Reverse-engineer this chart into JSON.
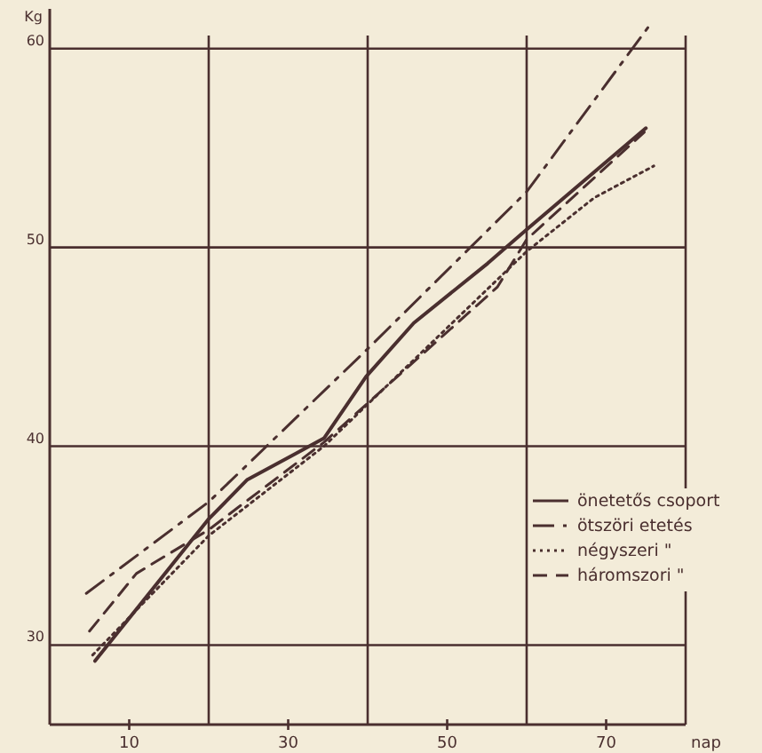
{
  "chart_data": {
    "type": "line",
    "xlabel": "nap",
    "ylabel": "Kg",
    "xlim": [
      0,
      80
    ],
    "ylim": [
      26,
      62
    ],
    "xticks": [
      10,
      {
        "value": 20,
        "label": null
      },
      30,
      {
        "value": 40,
        "label": null
      },
      50,
      {
        "value": 60,
        "label": null
      },
      70
    ],
    "yticks": [
      30,
      40,
      50,
      60
    ],
    "grid": true,
    "legend": "right",
    "series": [
      {
        "name": "önetetős csoport",
        "color": "#4a2f2f",
        "line_style": "solid",
        "x": [
          5.7,
          19.9,
          24.8,
          34.5,
          39.8,
          45.8,
          55.1,
          60,
          75
        ],
        "values": [
          29.2,
          36.3,
          38.3,
          40.4,
          43.5,
          46.2,
          49.2,
          50.9,
          56
        ]
      },
      {
        "name": "ötszöri etetés",
        "color": "#4a2f2f",
        "line_style": "dashdot",
        "x": [
          4.6,
          20,
          40,
          60,
          75.7
        ],
        "values": [
          32.6,
          37.2,
          44.9,
          52.8,
          61.3
        ]
      },
      {
        "name": "négyszeri \"",
        "color": "#4a2f2f",
        "line_style": "dotted",
        "x": [
          5.4,
          20,
          34.5,
          60,
          68.5,
          76
        ],
        "values": [
          29.5,
          35.5,
          40,
          49.8,
          52.5,
          54.1
        ]
      },
      {
        "name": "háromszori \"",
        "color": "#4a2f2f",
        "line_style": "dashed",
        "x": [
          5,
          10.9,
          20,
          34.5,
          56.3,
          60,
          74.8
        ],
        "values": [
          30.7,
          33.6,
          35.8,
          40.2,
          48,
          50.4,
          55.8
        ]
      }
    ]
  }
}
